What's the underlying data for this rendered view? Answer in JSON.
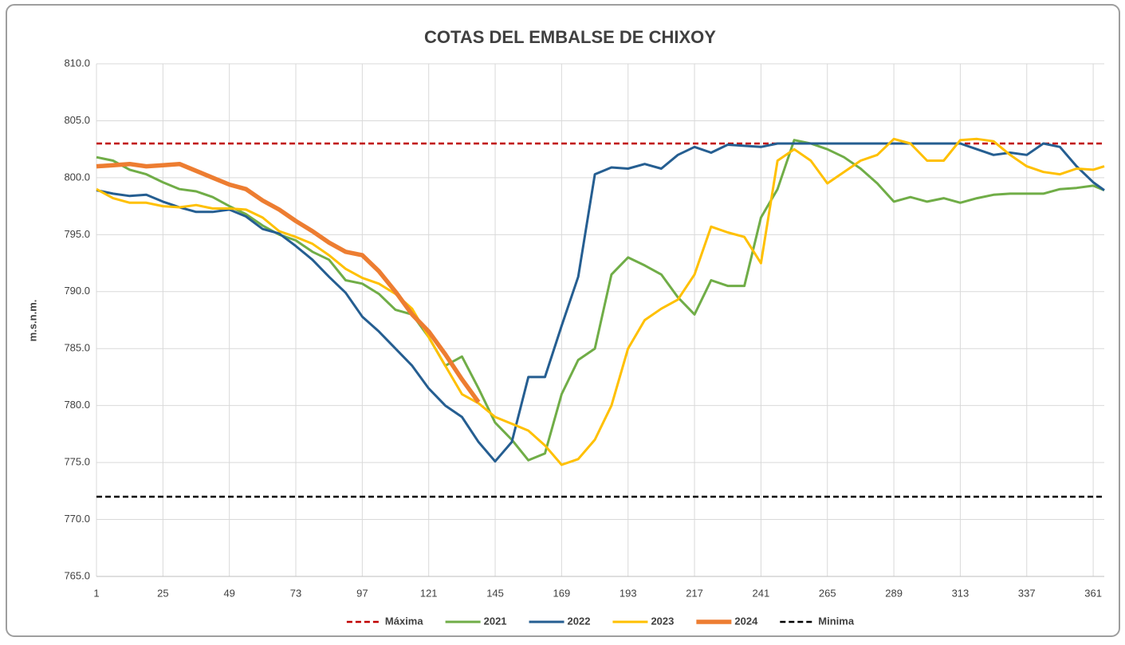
{
  "chart_data": {
    "type": "line",
    "title": "COTAS DEL EMBALSE DE CHIXOY",
    "y_label": "m.s.n.m.",
    "xlim": [
      1,
      365
    ],
    "xticks": [
      1,
      25,
      49,
      73,
      97,
      121,
      145,
      169,
      193,
      217,
      241,
      265,
      289,
      313,
      337,
      361
    ],
    "ylim": [
      765,
      810
    ],
    "yticks": [
      {
        "value": 765,
        "label": "765.0"
      },
      {
        "value": 770,
        "label": "770.0"
      },
      {
        "value": 775,
        "label": "775.0"
      },
      {
        "value": 780,
        "label": "780.0"
      },
      {
        "value": 785,
        "label": "785.0"
      },
      {
        "value": 790,
        "label": "790.0"
      },
      {
        "value": 795,
        "label": "795.0"
      },
      {
        "value": 800,
        "label": "800.0"
      },
      {
        "value": 805,
        "label": "805.0"
      },
      {
        "value": 810,
        "label": "810.0"
      }
    ],
    "grid": true,
    "legend": "bottom",
    "x": [
      1,
      7,
      13,
      19,
      25,
      31,
      37,
      43,
      49,
      55,
      61,
      67,
      73,
      79,
      85,
      91,
      97,
      103,
      109,
      115,
      121,
      127,
      133,
      139,
      145,
      151,
      157,
      163,
      169,
      175,
      181,
      187,
      193,
      199,
      205,
      211,
      217,
      223,
      229,
      235,
      241,
      247,
      253,
      259,
      265,
      271,
      277,
      283,
      289,
      295,
      301,
      307,
      313,
      319,
      325,
      331,
      337,
      343,
      349,
      355,
      361,
      365
    ],
    "series": [
      {
        "name": "Máxima",
        "color": "#c00000",
        "dashed": true,
        "line_width": 2.5,
        "values": [
          803,
          803,
          803,
          803,
          803,
          803,
          803,
          803,
          803,
          803,
          803,
          803,
          803,
          803,
          803,
          803,
          803,
          803,
          803,
          803,
          803,
          803,
          803,
          803,
          803,
          803,
          803,
          803,
          803,
          803,
          803,
          803,
          803,
          803,
          803,
          803,
          803,
          803,
          803,
          803,
          803,
          803,
          803,
          803,
          803,
          803,
          803,
          803,
          803,
          803,
          803,
          803,
          803,
          803,
          803,
          803,
          803,
          803,
          803,
          803,
          803,
          803
        ]
      },
      {
        "name": "2021",
        "color": "#70ad47",
        "dashed": false,
        "line_width": 3,
        "values": [
          801.8,
          801.5,
          800.7,
          800.3,
          799.6,
          799.0,
          798.8,
          798.3,
          797.5,
          796.8,
          795.8,
          795.0,
          794.5,
          793.5,
          792.8,
          791.0,
          790.7,
          789.8,
          788.4,
          788.0,
          786.0,
          783.5,
          784.3,
          781.5,
          778.5,
          777.0,
          775.2,
          775.8,
          781.0,
          784.0,
          785.0,
          791.5,
          793.0,
          792.3,
          791.5,
          789.5,
          788.0,
          791.0,
          790.5,
          790.5,
          796.5,
          799.0,
          803.3,
          803.0,
          802.5,
          801.8,
          800.8,
          799.5,
          797.9,
          798.3,
          797.9,
          798.2,
          797.8,
          798.2,
          798.5,
          798.6,
          798.6,
          798.6,
          799.0,
          799.1,
          799.3,
          798.9
        ]
      },
      {
        "name": "2022",
        "color": "#255e91",
        "dashed": false,
        "line_width": 3,
        "values": [
          798.9,
          798.6,
          798.4,
          798.5,
          797.9,
          797.4,
          797.0,
          797.0,
          797.2,
          796.6,
          795.5,
          795.1,
          794.0,
          792.8,
          791.3,
          789.9,
          787.8,
          786.5,
          785.0,
          783.5,
          781.5,
          780.0,
          779.0,
          776.8,
          775.1,
          776.8,
          782.5,
          782.5,
          787.0,
          791.3,
          800.3,
          800.9,
          800.8,
          801.2,
          800.8,
          802.0,
          802.7,
          802.2,
          802.9,
          802.8,
          802.7,
          803.0,
          803.0,
          803.0,
          803.0,
          803.0,
          803.0,
          803.0,
          803.0,
          803.0,
          803.0,
          803.0,
          803.0,
          802.5,
          802.0,
          802.2,
          802.0,
          803.0,
          802.7,
          801.0,
          799.6,
          798.9
        ]
      },
      {
        "name": "2023",
        "color": "#ffc000",
        "dashed": false,
        "line_width": 3,
        "values": [
          799.0,
          798.2,
          797.8,
          797.8,
          797.5,
          797.4,
          797.6,
          797.3,
          797.3,
          797.2,
          796.5,
          795.3,
          794.8,
          794.2,
          793.2,
          792.0,
          791.2,
          790.7,
          789.8,
          788.5,
          786.0,
          783.5,
          781.0,
          780.2,
          779.0,
          778.4,
          777.8,
          776.5,
          774.8,
          775.3,
          777.0,
          780.0,
          785.0,
          787.5,
          788.5,
          789.3,
          791.5,
          795.7,
          795.2,
          794.8,
          792.5,
          801.5,
          802.5,
          801.5,
          799.5,
          800.5,
          801.5,
          802.0,
          803.4,
          803.0,
          801.5,
          801.5,
          803.3,
          803.4,
          803.2,
          802.0,
          801.0,
          800.5,
          800.3,
          800.8,
          800.7,
          801.0
        ]
      },
      {
        "name": "2024",
        "color": "#ed7d31",
        "dashed": false,
        "line_width": 5.5,
        "values": [
          801.0,
          801.1,
          801.2,
          801.0,
          801.1,
          801.2,
          800.6,
          800.0,
          799.4,
          799.0,
          798.0,
          797.2,
          796.2,
          795.3,
          794.3,
          793.5,
          793.2,
          791.8,
          790.0,
          788.0,
          786.5,
          784.5,
          782.3,
          780.3,
          null,
          null,
          null,
          null,
          null,
          null,
          null,
          null,
          null,
          null,
          null,
          null,
          null,
          null,
          null,
          null,
          null,
          null,
          null,
          null,
          null,
          null,
          null,
          null,
          null,
          null,
          null,
          null,
          null,
          null,
          null,
          null,
          null,
          null,
          null,
          null,
          null,
          null
        ]
      },
      {
        "name": "Minima",
        "color": "#000000",
        "dashed": true,
        "line_width": 2.5,
        "values": [
          772,
          772,
          772,
          772,
          772,
          772,
          772,
          772,
          772,
          772,
          772,
          772,
          772,
          772,
          772,
          772,
          772,
          772,
          772,
          772,
          772,
          772,
          772,
          772,
          772,
          772,
          772,
          772,
          772,
          772,
          772,
          772,
          772,
          772,
          772,
          772,
          772,
          772,
          772,
          772,
          772,
          772,
          772,
          772,
          772,
          772,
          772,
          772,
          772,
          772,
          772,
          772,
          772,
          772,
          772,
          772,
          772,
          772,
          772,
          772,
          772,
          772
        ]
      }
    ]
  }
}
